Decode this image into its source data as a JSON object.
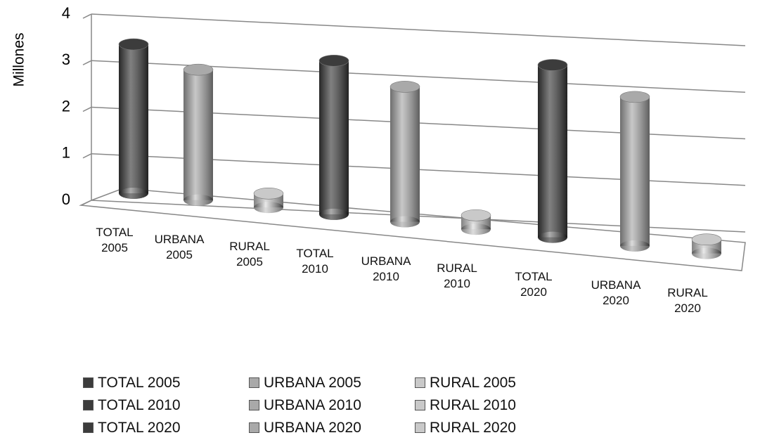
{
  "chart_data": {
    "type": "bar3d",
    "y_label": "Millones",
    "categories": [
      "TOTAL 2005",
      "URBANA 2005",
      "RURAL 2005",
      "TOTAL 2010",
      "URBANA 2010",
      "RURAL 2010",
      "TOTAL 2020",
      "URBANA 2020",
      "RURAL 2020"
    ],
    "values": [
      3.2,
      2.8,
      0.3,
      3.3,
      2.9,
      0.3,
      3.7,
      3.2,
      0.3
    ],
    "colors": [
      "#3c3c3c",
      "#a9a9a9",
      "#c9c9c9",
      "#3c3c3c",
      "#a9a9a9",
      "#c9c9c9",
      "#3c3c3c",
      "#a9a9a9",
      "#c9c9c9"
    ],
    "ylim": [
      0,
      4
    ],
    "yticks": [
      0,
      1,
      2,
      3,
      4
    ],
    "grid": true
  }
}
